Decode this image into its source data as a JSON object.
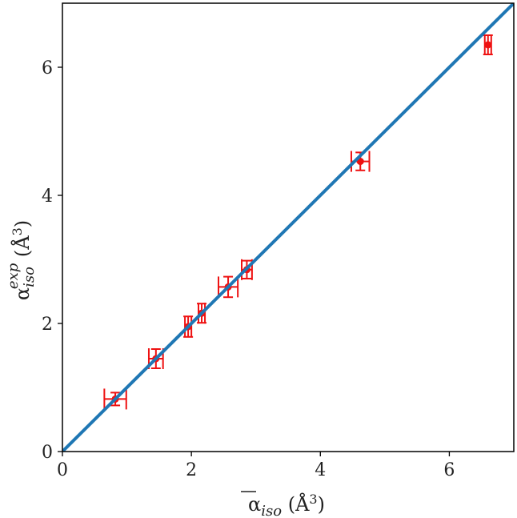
{
  "chart_data": {
    "type": "scatter",
    "xlabel": "ᾱ_iso (Å³)",
    "ylabel": "α_iso^exp (Å³)",
    "xlim": [
      0,
      7
    ],
    "ylim": [
      0,
      7
    ],
    "xticks": [
      0,
      2,
      4,
      6
    ],
    "yticks": [
      0,
      2,
      4,
      6
    ],
    "xtick_labels": [
      "0",
      "2",
      "4",
      "6"
    ],
    "ytick_labels": [
      "0",
      "2",
      "4",
      "6"
    ],
    "grid": false,
    "series": [
      {
        "type": "errorbar",
        "color": "#ee1111",
        "points": [
          {
            "x": 0.82,
            "y": 0.82,
            "xerr": 0.17,
            "yerr": 0.1
          },
          {
            "x": 1.45,
            "y": 1.45,
            "xerr": 0.11,
            "yerr": 0.15
          },
          {
            "x": 1.95,
            "y": 1.95,
            "xerr": 0.05,
            "yerr": 0.16
          },
          {
            "x": 2.16,
            "y": 2.16,
            "xerr": 0.05,
            "yerr": 0.15
          },
          {
            "x": 2.57,
            "y": 2.57,
            "xerr": 0.15,
            "yerr": 0.16
          },
          {
            "x": 2.86,
            "y": 2.84,
            "xerr": 0.08,
            "yerr": 0.14
          },
          {
            "x": 4.62,
            "y": 4.53,
            "xerr": 0.14,
            "yerr": 0.14
          },
          {
            "x": 6.6,
            "y": 6.35,
            "xerr": 0.05,
            "yerr": 0.15
          }
        ]
      },
      {
        "type": "line",
        "color": "#1f77b4",
        "x": [
          0,
          7
        ],
        "y": [
          0,
          7
        ]
      }
    ]
  }
}
